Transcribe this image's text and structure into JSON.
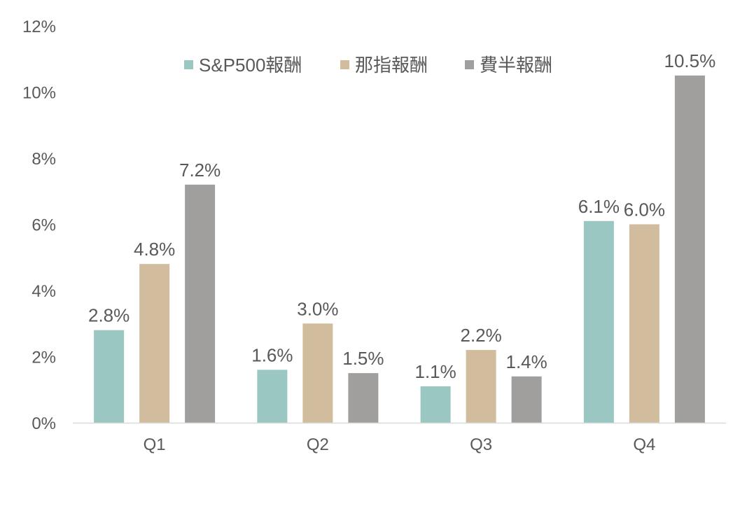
{
  "chart_data": {
    "type": "bar",
    "categories": [
      "Q1",
      "Q2",
      "Q3",
      "Q4"
    ],
    "series": [
      {
        "name": "S&P500報酬",
        "values": [
          2.8,
          1.6,
          1.1,
          6.1
        ],
        "labels": [
          "2.8%",
          "1.6%",
          "1.1%",
          "6.1%"
        ],
        "color": "#9AC7C1"
      },
      {
        "name": "那指報酬",
        "values": [
          4.8,
          3.0,
          2.2,
          6.0
        ],
        "labels": [
          "4.8%",
          "3.0%",
          "2.2%",
          "6.0%"
        ],
        "color": "#D1BD9E"
      },
      {
        "name": "費半報酬",
        "values": [
          7.2,
          1.5,
          1.4,
          10.5
        ],
        "labels": [
          "7.2%",
          "1.5%",
          "1.4%",
          "10.5%"
        ],
        "color": "#A09F9D"
      }
    ],
    "title": "",
    "xlabel": "",
    "ylabel": "",
    "ylim": [
      0,
      12
    ],
    "yticks": [
      0,
      2,
      4,
      6,
      8,
      10,
      12
    ],
    "ytick_labels": [
      "0%",
      "2%",
      "4%",
      "6%",
      "8%",
      "10%",
      "12%"
    ],
    "grid": false,
    "legend_position": "top-center",
    "axis_color": "#D9D9D9",
    "text_color": "#595959"
  }
}
